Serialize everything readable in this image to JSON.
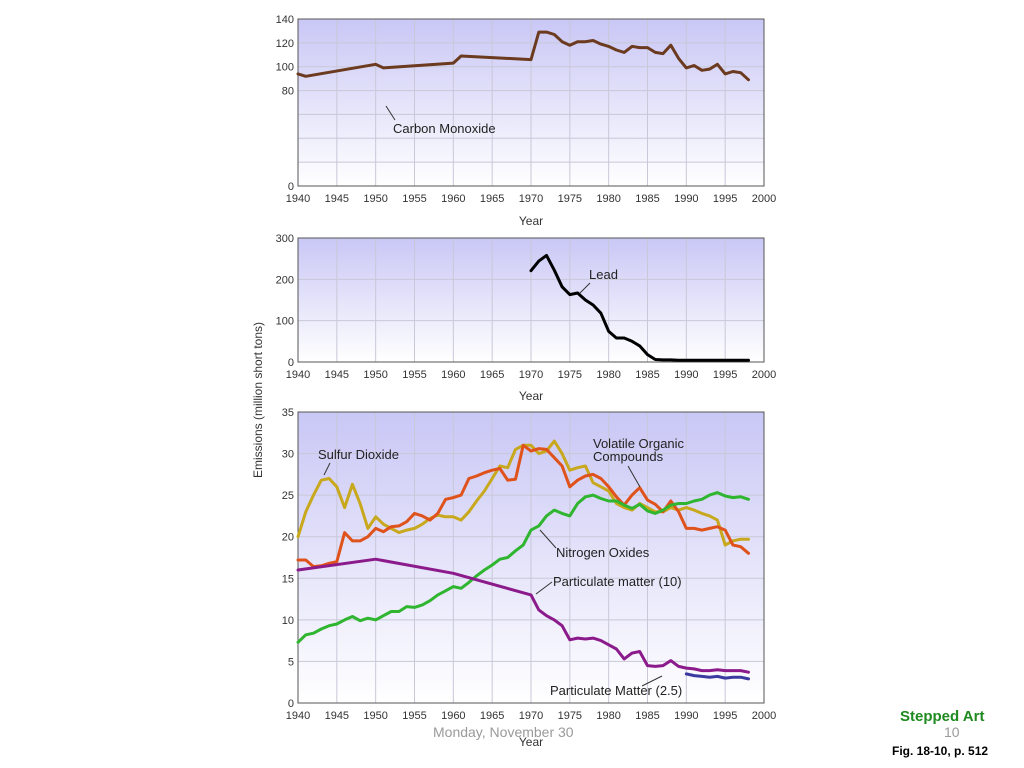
{
  "chart_data": [
    {
      "type": "line",
      "xlabel": "Year",
      "xlim": [
        1940,
        2000
      ],
      "ylim": [
        0,
        140
      ],
      "xticks": [
        1940,
        1945,
        1950,
        1955,
        1960,
        1965,
        1970,
        1975,
        1980,
        1985,
        1990,
        1995,
        2000
      ],
      "yticks": [
        0,
        20,
        40,
        60,
        80,
        100,
        120,
        140
      ],
      "ytick_labels": [
        "0",
        "",
        "",
        "",
        "80",
        "100",
        "120",
        "140"
      ],
      "grid": true,
      "series": [
        {
          "name": "Carbon Monoxide",
          "color": "#6b3a1f",
          "x": [
            1940,
            1941,
            1950,
            1951,
            1960,
            1961,
            1970,
            1971,
            1972,
            1973,
            1974,
            1975,
            1976,
            1977,
            1978,
            1979,
            1980,
            1981,
            1982,
            1983,
            1984,
            1985,
            1986,
            1987,
            1988,
            1989,
            1990,
            1991,
            1992,
            1993,
            1994,
            1995,
            1996,
            1997,
            1998
          ],
          "y": [
            94,
            92,
            102,
            99,
            103,
            109,
            106,
            129,
            129,
            127,
            121,
            118,
            121,
            121,
            122,
            119,
            117,
            114,
            112,
            117,
            116,
            116,
            112,
            111,
            118,
            107,
            99,
            101,
            97,
            98,
            102,
            94,
            96,
            95,
            89
          ]
        }
      ]
    },
    {
      "type": "line",
      "xlabel": "Year",
      "ylabel": "Emissions (million short tons)",
      "xlim": [
        1940,
        2000
      ],
      "ylim": [
        0,
        300
      ],
      "xticks": [
        1940,
        1945,
        1950,
        1955,
        1960,
        1965,
        1970,
        1975,
        1980,
        1985,
        1990,
        1995,
        2000
      ],
      "yticks": [
        0,
        100,
        200,
        300
      ],
      "grid": true,
      "series": [
        {
          "name": "Lead",
          "color": "#000000",
          "x": [
            1970,
            1971,
            1972,
            1973,
            1974,
            1975,
            1976,
            1977,
            1978,
            1979,
            1980,
            1981,
            1982,
            1983,
            1984,
            1985,
            1986,
            1987,
            1988,
            1989,
            1990,
            1991,
            1992,
            1993,
            1994,
            1995,
            1996,
            1997,
            1998
          ],
          "y": [
            221,
            244,
            258,
            222,
            182,
            163,
            167,
            150,
            138,
            118,
            74,
            58,
            58,
            50,
            39,
            18,
            6,
            5,
            5,
            4,
            4,
            4,
            4,
            4,
            4,
            4,
            4,
            4,
            4
          ]
        }
      ]
    },
    {
      "type": "line",
      "xlabel": "Year",
      "xlim": [
        1940,
        2000
      ],
      "ylim": [
        0,
        35
      ],
      "xticks": [
        1940,
        1945,
        1950,
        1955,
        1960,
        1965,
        1970,
        1975,
        1980,
        1985,
        1990,
        1995,
        2000
      ],
      "yticks": [
        0,
        5,
        10,
        15,
        20,
        25,
        30,
        35
      ],
      "grid": true,
      "series": [
        {
          "name": "Sulfur Dioxide",
          "color": "#c8a81c",
          "x": [
            1940,
            1941,
            1942,
            1943,
            1944,
            1945,
            1946,
            1947,
            1948,
            1949,
            1950,
            1951,
            1952,
            1953,
            1954,
            1955,
            1956,
            1957,
            1958,
            1959,
            1960,
            1961,
            1962,
            1963,
            1964,
            1965,
            1966,
            1967,
            1968,
            1969,
            1970,
            1971,
            1972,
            1973,
            1974,
            1975,
            1976,
            1977,
            1978,
            1979,
            1980,
            1981,
            1982,
            1983,
            1984,
            1985,
            1986,
            1987,
            1988,
            1989,
            1990,
            1991,
            1992,
            1993,
            1994,
            1995,
            1996,
            1997,
            1998
          ],
          "y": [
            20,
            23,
            25,
            26.8,
            27,
            26,
            23.5,
            26.3,
            24,
            21,
            22.4,
            21.5,
            21,
            20.5,
            20.8,
            21,
            21.5,
            22.2,
            22.6,
            22.4,
            22.4,
            22,
            23,
            24.3,
            25.5,
            27,
            28.5,
            28.3,
            30.5,
            31,
            31,
            30,
            30.3,
            31.5,
            30,
            28,
            28.3,
            28.5,
            26.5,
            26,
            25.5,
            24,
            23.5,
            23.2,
            24,
            23.5,
            23,
            23,
            23.5,
            23.2,
            23.5,
            23.2,
            22.8,
            22.5,
            22,
            19,
            19.5,
            19.7,
            19.7
          ]
        },
        {
          "name": "Volatile Organic Compounds",
          "color": "#e0521b",
          "x": [
            1940,
            1941,
            1942,
            1943,
            1944,
            1945,
            1946,
            1947,
            1948,
            1949,
            1950,
            1951,
            1952,
            1953,
            1954,
            1955,
            1956,
            1957,
            1958,
            1959,
            1960,
            1961,
            1962,
            1963,
            1964,
            1965,
            1966,
            1967,
            1968,
            1969,
            1970,
            1971,
            1972,
            1973,
            1974,
            1975,
            1976,
            1977,
            1978,
            1979,
            1980,
            1981,
            1982,
            1983,
            1984,
            1985,
            1986,
            1987,
            1988,
            1989,
            1990,
            1991,
            1992,
            1993,
            1994,
            1995,
            1996,
            1997,
            1998
          ],
          "y": [
            17.2,
            17.2,
            16.4,
            16.5,
            16.8,
            17,
            20.5,
            19.5,
            19.5,
            20,
            21,
            20.6,
            21.2,
            21.3,
            21.8,
            22.8,
            22.5,
            22,
            22.8,
            24.5,
            24.7,
            25,
            27,
            27.3,
            27.7,
            28,
            28.2,
            26.8,
            26.9,
            31,
            30.3,
            30.6,
            30.5,
            29.5,
            28.5,
            26,
            26.8,
            27.3,
            27.5,
            27,
            26,
            24.8,
            23.8,
            25,
            25.9,
            24.4,
            23.9,
            23,
            24.3,
            23,
            21,
            21,
            20.8,
            21,
            21.2,
            20.8,
            19,
            18.8,
            18
          ]
        },
        {
          "name": "Nitrogen Oxides",
          "color": "#2fb52f",
          "x": [
            1940,
            1941,
            1942,
            1943,
            1944,
            1945,
            1946,
            1947,
            1948,
            1949,
            1950,
            1951,
            1952,
            1953,
            1954,
            1955,
            1956,
            1957,
            1958,
            1959,
            1960,
            1961,
            1962,
            1963,
            1964,
            1965,
            1966,
            1967,
            1968,
            1969,
            1970,
            1971,
            1972,
            1973,
            1974,
            1975,
            1976,
            1977,
            1978,
            1979,
            1980,
            1981,
            1982,
            1983,
            1984,
            1985,
            1986,
            1987,
            1988,
            1989,
            1990,
            1991,
            1992,
            1993,
            1994,
            1995,
            1996,
            1997,
            1998
          ],
          "y": [
            7.3,
            8.2,
            8.4,
            8.9,
            9.3,
            9.5,
            10,
            10.4,
            9.9,
            10.2,
            10,
            10.5,
            11,
            11,
            11.6,
            11.5,
            11.8,
            12.3,
            13,
            13.5,
            14,
            13.8,
            14.5,
            15.3,
            16,
            16.6,
            17.3,
            17.5,
            18.3,
            19,
            20.8,
            21.3,
            22.5,
            23.2,
            22.8,
            22.5,
            24,
            24.8,
            25,
            24.6,
            24.3,
            24.3,
            23.8,
            23.4,
            23.9,
            23.1,
            22.8,
            23.2,
            23.8,
            24,
            24,
            24.3,
            24.5,
            25,
            25.3,
            24.9,
            24.7,
            24.8,
            24.5
          ]
        },
        {
          "name": "Particulate matter (10)",
          "color": "#8b1a8b",
          "x": [
            1940,
            1950,
            1960,
            1970,
            1971,
            1972,
            1973,
            1974,
            1975,
            1976,
            1977,
            1978,
            1979,
            1980,
            1981,
            1982,
            1983,
            1984,
            1985,
            1986,
            1987,
            1988,
            1989,
            1990,
            1991,
            1992,
            1993,
            1994,
            1995,
            1996,
            1997,
            1998
          ],
          "y": [
            16,
            17.3,
            15.6,
            13,
            11.2,
            10.5,
            10,
            9.3,
            7.6,
            7.8,
            7.7,
            7.8,
            7.5,
            7,
            6.5,
            5.3,
            6,
            6.2,
            4.5,
            4.4,
            4.5,
            5.1,
            4.4,
            4.2,
            4.1,
            3.9,
            3.9,
            4,
            3.9,
            3.9,
            3.9,
            3.7
          ]
        },
        {
          "name": "Particulate Matter (2.5)",
          "color": "#3a3aa0",
          "x": [
            1990,
            1991,
            1992,
            1993,
            1994,
            1995,
            1996,
            1997,
            1998
          ],
          "y": [
            3.5,
            3.3,
            3.2,
            3.1,
            3.2,
            3.0,
            3.1,
            3.1,
            2.9
          ]
        }
      ]
    }
  ],
  "footer": {
    "date": "Monday, November 30",
    "slide_number": "10",
    "stepped_art": "Stepped Art",
    "figure_ref": "Fig. 18-10, p. 512"
  }
}
